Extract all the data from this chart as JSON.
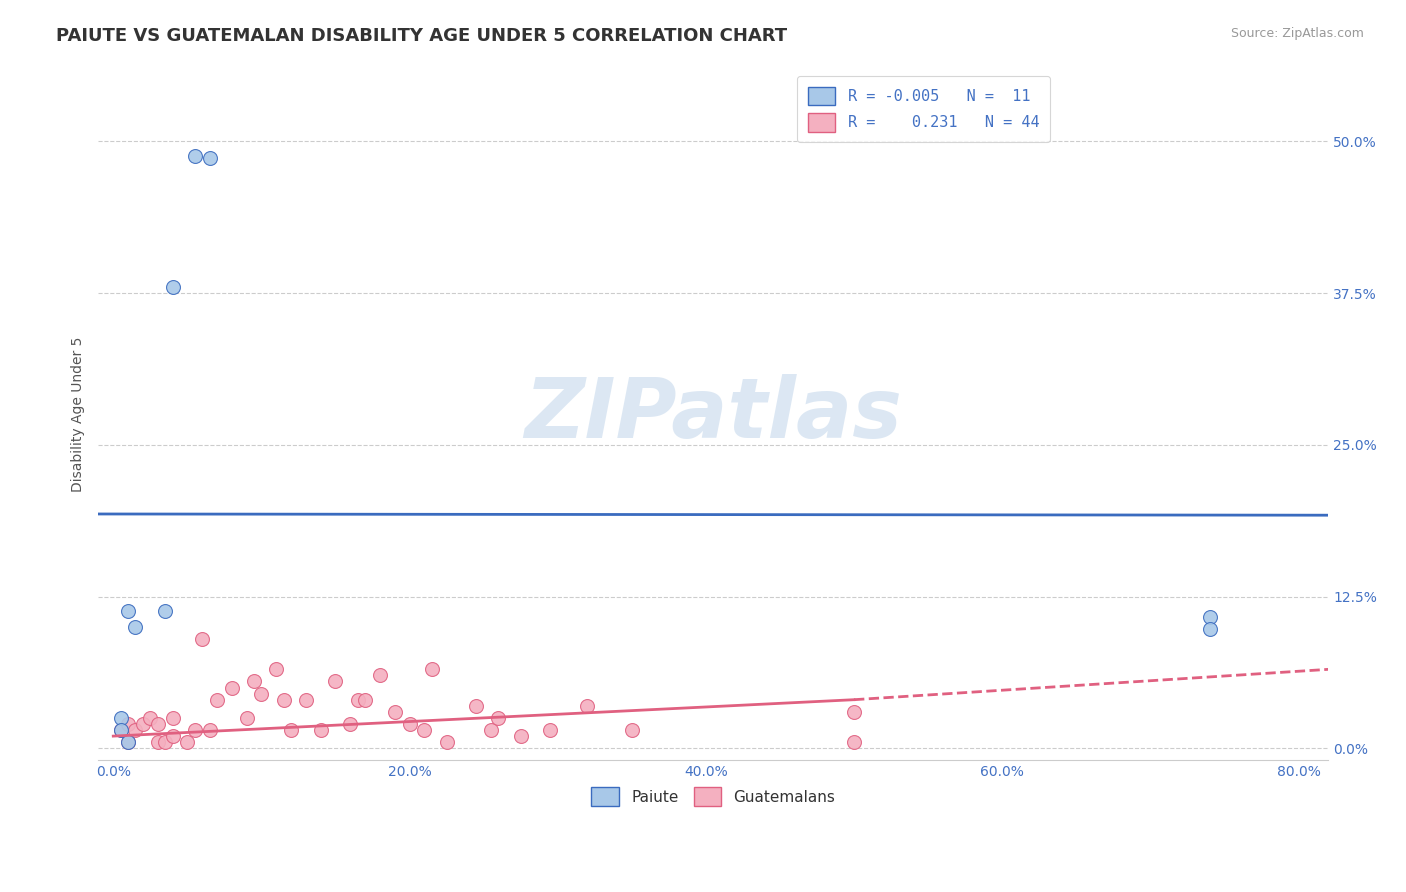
{
  "title": "PAIUTE VS GUATEMALAN DISABILITY AGE UNDER 5 CORRELATION CHART",
  "source": "Source: ZipAtlas.com",
  "ylabel": "Disability Age Under 5",
  "xlabel": "",
  "xlim": [
    -0.01,
    0.82
  ],
  "ylim": [
    -0.01,
    0.56
  ],
  "yticks": [
    0.0,
    0.125,
    0.25,
    0.375,
    0.5
  ],
  "ytick_labels": [
    "0.0%",
    "12.5%",
    "25.0%",
    "37.5%",
    "50.0%"
  ],
  "xticks": [
    0.0,
    0.2,
    0.4,
    0.6,
    0.8
  ],
  "xtick_labels": [
    "0.0%",
    "20.0%",
    "40.0%",
    "60.0%",
    "80.0%"
  ],
  "paiute_x": [
    0.055,
    0.065,
    0.04,
    0.035,
    0.01,
    0.015,
    0.005,
    0.005,
    0.01,
    0.74,
    0.74
  ],
  "paiute_y": [
    0.488,
    0.486,
    0.38,
    0.113,
    0.113,
    0.1,
    0.025,
    0.015,
    0.005,
    0.108,
    0.098
  ],
  "guatemalan_x": [
    0.005,
    0.01,
    0.01,
    0.015,
    0.02,
    0.025,
    0.03,
    0.03,
    0.035,
    0.04,
    0.04,
    0.05,
    0.055,
    0.06,
    0.065,
    0.07,
    0.08,
    0.09,
    0.095,
    0.1,
    0.11,
    0.115,
    0.12,
    0.13,
    0.14,
    0.15,
    0.16,
    0.165,
    0.17,
    0.18,
    0.19,
    0.2,
    0.21,
    0.215,
    0.225,
    0.245,
    0.255,
    0.26,
    0.275,
    0.295,
    0.32,
    0.35,
    0.5,
    0.5
  ],
  "guatemalan_y": [
    0.015,
    0.005,
    0.02,
    0.015,
    0.02,
    0.025,
    0.005,
    0.02,
    0.005,
    0.01,
    0.025,
    0.005,
    0.015,
    0.09,
    0.015,
    0.04,
    0.05,
    0.025,
    0.055,
    0.045,
    0.065,
    0.04,
    0.015,
    0.04,
    0.015,
    0.055,
    0.02,
    0.04,
    0.04,
    0.06,
    0.03,
    0.02,
    0.015,
    0.065,
    0.005,
    0.035,
    0.015,
    0.025,
    0.01,
    0.015,
    0.035,
    0.015,
    0.03,
    0.005
  ],
  "paiute_color": "#a8c8e8",
  "guatemalan_color": "#f4b0c0",
  "paiute_trend_color": "#3a6bbf",
  "guatemalan_trend_color": "#e06080",
  "paiute_trend_y0": 0.193,
  "paiute_trend_y1": 0.192,
  "guatemalan_trend_x_solid_end": 0.5,
  "guatemalan_trend_y0": 0.01,
  "guatemalan_trend_y1_solid": 0.04,
  "guatemalan_trend_y1_dashed": 0.065,
  "legend_R_paiute": "-0.005",
  "legend_N_paiute": "11",
  "legend_R_guatemalan": "0.231",
  "legend_N_guatemalan": "44",
  "watermark_text": "ZIPatlas",
  "watermark_color": "#c5d8ec",
  "grid_color": "#cccccc",
  "background_color": "#ffffff",
  "title_fontsize": 13,
  "axis_label_fontsize": 10,
  "tick_fontsize": 10,
  "tick_color": "#4472c4",
  "legend_fontsize": 11
}
